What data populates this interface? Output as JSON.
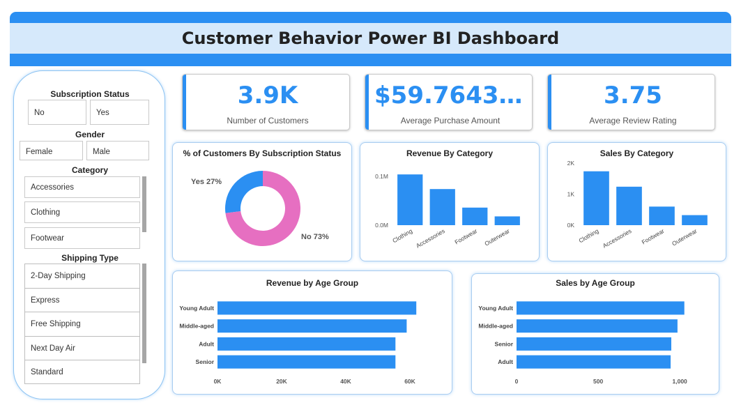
{
  "header": {
    "title": "Customer Behavior Power BI Dashboard"
  },
  "colors": {
    "accent": "#2b8ff2",
    "donut_yes": "#2b8ff2",
    "donut_no": "#e66fc1",
    "header_band": "#d6e9fb"
  },
  "filters": {
    "subscription_status": {
      "title": "Subscription Status",
      "options": [
        "No",
        "Yes"
      ]
    },
    "gender": {
      "title": "Gender",
      "options": [
        "Female",
        "Male"
      ]
    },
    "category": {
      "title": "Category",
      "options": [
        "Accessories",
        "Clothing",
        "Footwear"
      ]
    },
    "shipping_type": {
      "title": "Shipping Type",
      "options": [
        "2-Day Shipping",
        "Express",
        "Free Shipping",
        "Next Day Air",
        "Standard"
      ]
    }
  },
  "kpis": [
    {
      "value": "3.9K",
      "label": "Number of Customers"
    },
    {
      "value": "$59.764358...",
      "label": "Average Purchase Amount"
    },
    {
      "value": "3.75",
      "label": "Average Review Rating"
    }
  ],
  "chart_data": [
    {
      "type": "pie",
      "title": "% of Customers By Subscription Status",
      "categories": [
        "Yes",
        "No"
      ],
      "values": [
        27,
        73
      ],
      "labels": [
        "Yes 27%",
        "No 73%"
      ],
      "donut": true
    },
    {
      "type": "bar",
      "title": "Revenue By Category",
      "categories": [
        "Clothing",
        "Accessories",
        "Footwear",
        "Outerwear"
      ],
      "values": [
        104000,
        74000,
        36000,
        18000
      ],
      "ylim": [
        0,
        130000
      ],
      "yticks": [
        0,
        100000
      ],
      "ytick_labels": [
        "0.0M",
        "0.1M"
      ],
      "grid": false
    },
    {
      "type": "bar",
      "title": "Sales By Category",
      "categories": [
        "Clothing",
        "Accessories",
        "Footwear",
        "Outerwear"
      ],
      "values": [
        1737,
        1240,
        599,
        324
      ],
      "ylim": [
        0,
        2000
      ],
      "yticks": [
        0,
        1000,
        2000
      ],
      "ytick_labels": [
        "0K",
        "1K",
        "2K"
      ],
      "grid": false
    },
    {
      "type": "bar",
      "orientation": "horizontal",
      "title": "Revenue by Age Group",
      "categories": [
        "Young Adult",
        "Middle-aged",
        "Adult",
        "Senior"
      ],
      "values": [
        62000,
        59000,
        55500,
        55500
      ],
      "xlim": [
        0,
        70000
      ],
      "xticks": [
        0,
        20000,
        40000,
        60000
      ],
      "xtick_labels": [
        "0K",
        "20K",
        "40K",
        "60K"
      ],
      "grid": false
    },
    {
      "type": "bar",
      "orientation": "horizontal",
      "title": "Sales by Age Group",
      "categories": [
        "Young Adult",
        "Middle-aged",
        "Senior",
        "Adult"
      ],
      "values": [
        1028,
        986,
        948,
        944
      ],
      "xlim": [
        0,
        1200
      ],
      "xticks": [
        0,
        500,
        1000
      ],
      "xtick_labels": [
        "0",
        "500",
        "1,000"
      ],
      "grid": false
    }
  ]
}
